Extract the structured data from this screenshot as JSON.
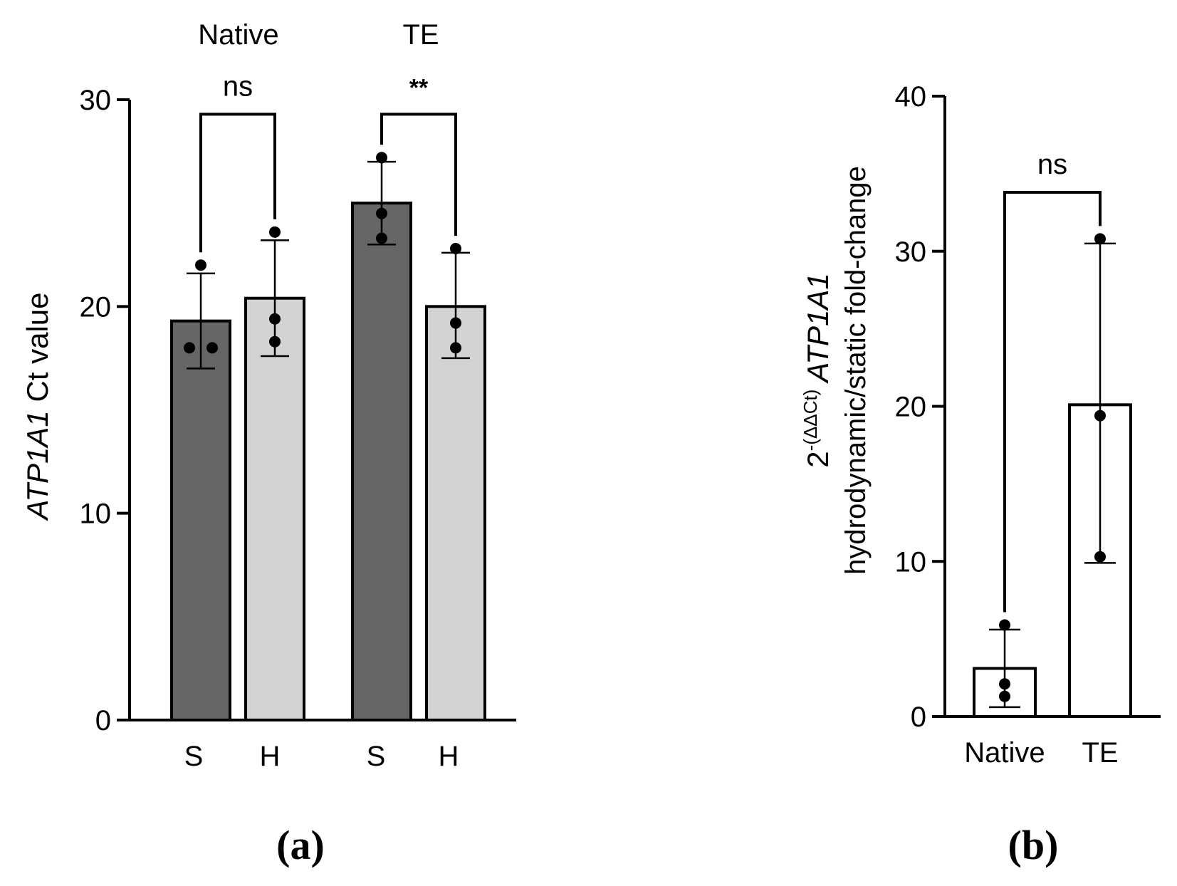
{
  "chart_data": [
    {
      "panel": "(a)",
      "type": "bar",
      "ylabel_italic": "ATP1A1",
      "ylabel_rest": " Ct value",
      "ylim": [
        0,
        30
      ],
      "yticks": [
        "0",
        "10",
        "20",
        "30"
      ],
      "groups": [
        "Native",
        "TE"
      ],
      "categories": [
        "S",
        "H",
        "S",
        "H"
      ],
      "bars": [
        {
          "group": "Native",
          "label": "S",
          "mean": 19.3,
          "err_low": 17.0,
          "err_high": 21.6,
          "points": [
            18.0,
            18.0,
            22.0
          ],
          "color": "#666666"
        },
        {
          "group": "Native",
          "label": "H",
          "mean": 20.4,
          "err_low": 17.6,
          "err_high": 23.2,
          "points": [
            18.3,
            19.4,
            23.6
          ],
          "color": "#d3d3d3"
        },
        {
          "group": "TE",
          "label": "S",
          "mean": 25.0,
          "err_low": 23.0,
          "err_high": 27.0,
          "points": [
            23.3,
            24.5,
            27.2
          ],
          "color": "#666666"
        },
        {
          "group": "TE",
          "label": "H",
          "mean": 20.0,
          "err_low": 17.5,
          "err_high": 22.6,
          "points": [
            18.0,
            19.2,
            22.8
          ],
          "color": "#d3d3d3"
        }
      ],
      "significance": [
        {
          "group": "Native",
          "from": 0,
          "to": 1,
          "y": 29.3,
          "label": "ns"
        },
        {
          "group": "TE",
          "from": 2,
          "to": 3,
          "y": 29.3,
          "label": "**"
        }
      ]
    },
    {
      "panel": "(b)",
      "type": "bar",
      "ylabel_line1_base": "2",
      "ylabel_line1_sup": "-(ΔΔCt)",
      "ylabel_line1_italic": "ATP1A1",
      "ylabel_line2": "hydrodynamic/static fold-change",
      "ylim": [
        0,
        40
      ],
      "yticks": [
        "0",
        "10",
        "20",
        "30",
        "40"
      ],
      "categories": [
        "Native",
        "TE"
      ],
      "bars": [
        {
          "label": "Native",
          "mean": 3.1,
          "err_low": 0.6,
          "err_high": 5.6,
          "points": [
            1.3,
            2.1,
            5.9
          ],
          "color": "#ffffff"
        },
        {
          "label": "TE",
          "mean": 20.1,
          "err_low": 9.9,
          "err_high": 30.5,
          "points": [
            10.3,
            19.4,
            30.8
          ],
          "color": "#ffffff"
        }
      ],
      "significance": [
        {
          "from": 0,
          "to": 1,
          "y": 33.8,
          "label": "ns"
        }
      ]
    }
  ]
}
